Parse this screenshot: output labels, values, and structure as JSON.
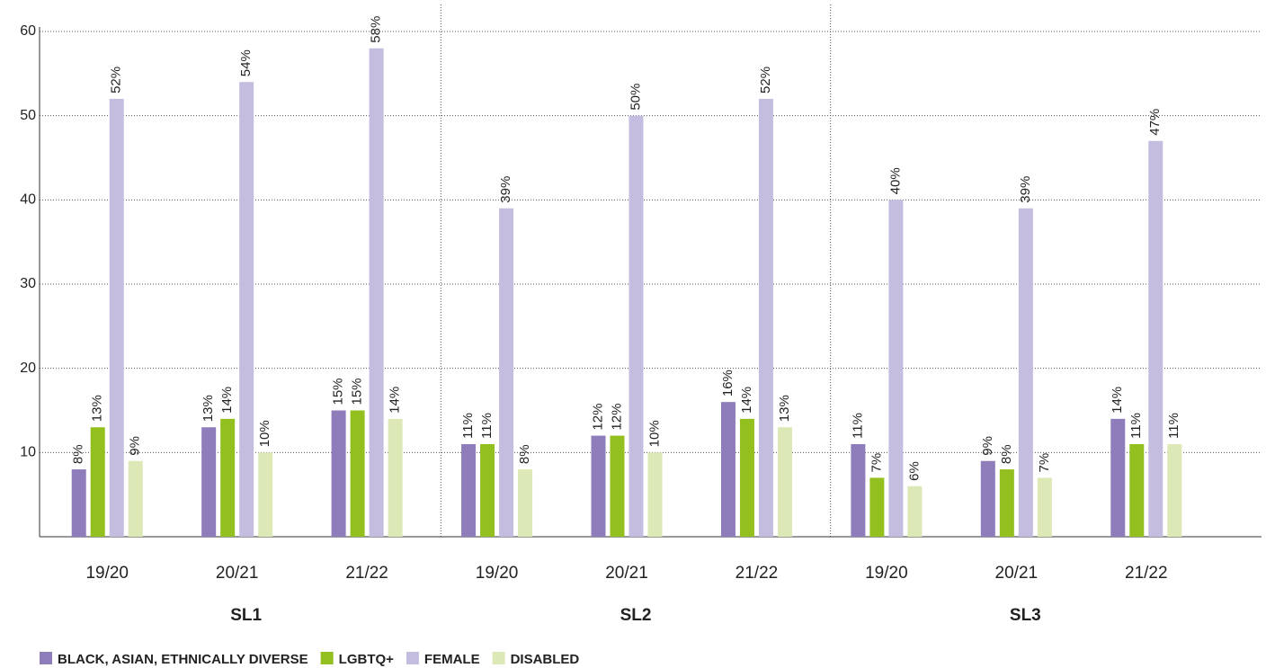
{
  "chart_data": {
    "type": "bar",
    "categories": [
      "19/20",
      "20/21",
      "21/22",
      "19/20",
      "20/21",
      "21/22",
      "19/20",
      "20/21",
      "21/22"
    ],
    "groups": [
      "SL1",
      "SL2",
      "SL3"
    ],
    "series": [
      {
        "name": "BLACK, ASIAN, ETHNICALLY DIVERSE",
        "color": "#8f7dbb",
        "values": [
          8,
          13,
          15,
          11,
          12,
          16,
          11,
          9,
          14
        ],
        "value_labels": [
          "8%",
          "13%",
          "15%",
          "11%",
          "12%",
          "16%",
          "11%",
          "9%",
          "14%"
        ]
      },
      {
        "name": "LGBTQ+",
        "color": "#93bf1f",
        "values": [
          13,
          14,
          15,
          11,
          12,
          14,
          7,
          8,
          11
        ],
        "value_labels": [
          "13%",
          "14%",
          "15%",
          "11%",
          "12%",
          "14%",
          "7%",
          "8%",
          "11%"
        ]
      },
      {
        "name": "FEMALE",
        "color": "#c5bddf",
        "values": [
          52,
          54,
          58,
          39,
          50,
          52,
          40,
          39,
          47
        ],
        "value_labels": [
          "52%",
          "54%",
          "58%",
          "39%",
          "50%",
          "52%",
          "40%",
          "39%",
          "47%"
        ]
      },
      {
        "name": "DISABLED",
        "color": "#dce8b5",
        "values": [
          9,
          10,
          14,
          8,
          10,
          13,
          6,
          7,
          11
        ],
        "value_labels": [
          "9%",
          "10%",
          "14%",
          "8%",
          "10%",
          "13%",
          "6%",
          "7%",
          "11%"
        ]
      }
    ],
    "ylim": [
      0,
      60
    ],
    "yticks": [
      10,
      20,
      30,
      40,
      50,
      60
    ],
    "grid": true,
    "legend": "bottom"
  }
}
